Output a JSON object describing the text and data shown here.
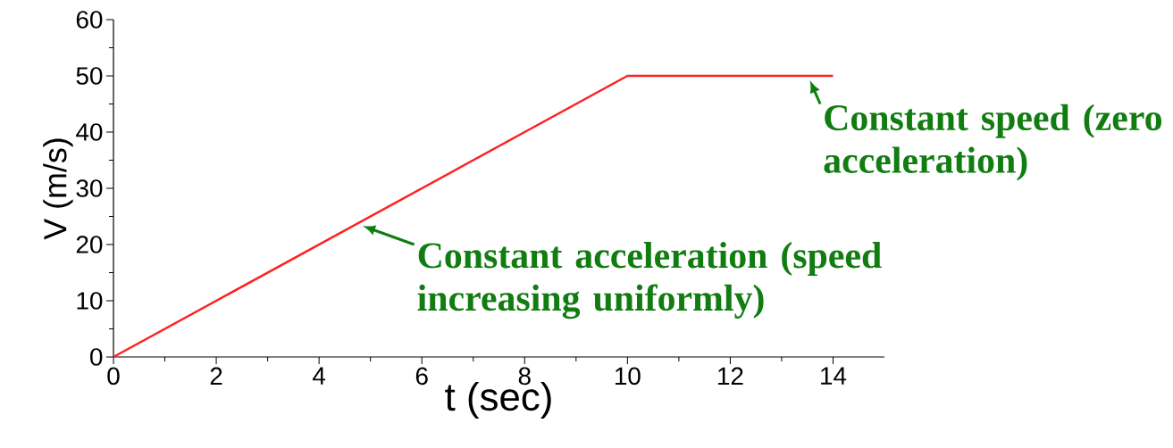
{
  "chart_data": {
    "type": "line",
    "xlabel": "t (sec)",
    "ylabel": "V (m/s)",
    "x": [
      0,
      10,
      14
    ],
    "series": [
      {
        "color": "#ff2020",
        "values": [
          0,
          50,
          50
        ]
      }
    ],
    "xlim": [
      0,
      15
    ],
    "ylim": [
      0,
      60
    ],
    "xticks": [
      0,
      2,
      4,
      6,
      8,
      10,
      12,
      14
    ],
    "yticks": [
      0,
      10,
      20,
      30,
      40,
      50,
      60
    ],
    "grid": false,
    "marker": "none",
    "line_style": "solid",
    "annotations": [
      {
        "text": "Constant acceleration (speed increasing uniformly)",
        "x": 4.7,
        "y": 23.5
      },
      {
        "text": "Constant speed (zero acceleration)",
        "x": 13.5,
        "y": 50
      }
    ]
  }
}
